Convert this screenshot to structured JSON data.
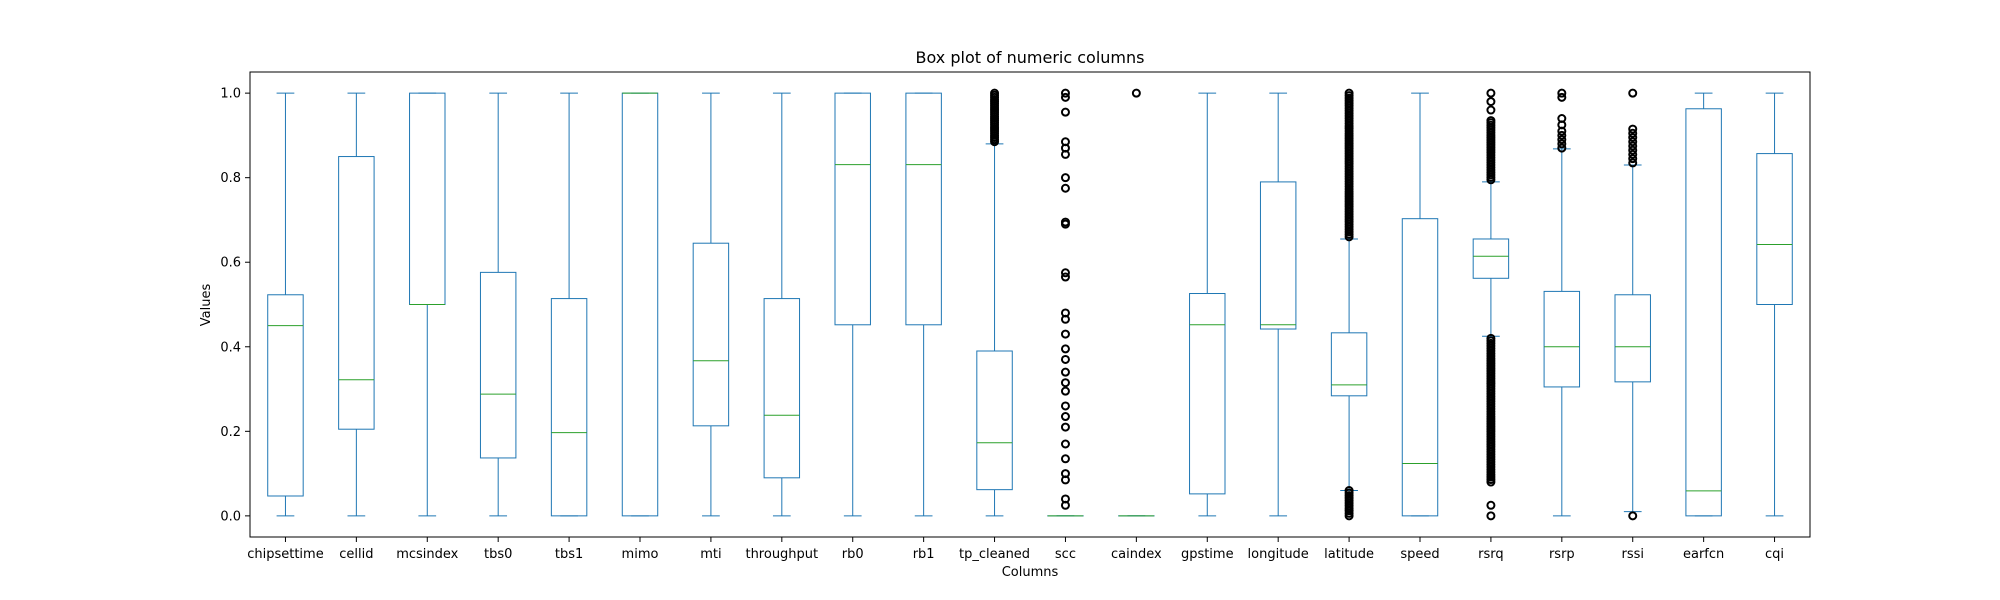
{
  "chart_data": {
    "type": "box",
    "title": "Box plot of numeric columns",
    "xlabel": "Columns",
    "ylabel": "Values",
    "ylim": [
      -0.05,
      1.05
    ],
    "yticks": [
      "0.0",
      "0.2",
      "0.4",
      "0.6",
      "0.8",
      "1.0"
    ],
    "grid": false,
    "colors": {
      "box": "#1f77b4",
      "median": "#2ca02c",
      "flier": "#000000",
      "axis": "#000000"
    },
    "categories": [
      "chipsettime",
      "cellid",
      "mcsindex",
      "tbs0",
      "tbs1",
      "mimo",
      "mti",
      "throughput",
      "rb0",
      "rb1",
      "tp_cleaned",
      "scc",
      "caindex",
      "gpstime",
      "longitude",
      "latitude",
      "speed",
      "rsrq",
      "rsrp",
      "rssi",
      "earfcn",
      "cqi"
    ],
    "series": [
      {
        "category": "chipsettime",
        "whisker_low": 0.0,
        "q1": 0.047,
        "median": 0.45,
        "q3": 0.523,
        "whisker_high": 1.0,
        "fliers": []
      },
      {
        "category": "cellid",
        "whisker_low": 0.0,
        "q1": 0.205,
        "median": 0.322,
        "q3": 0.85,
        "whisker_high": 1.0,
        "fliers": []
      },
      {
        "category": "mcsindex",
        "whisker_low": 0.0,
        "q1": 0.5,
        "median": 0.5,
        "q3": 1.0,
        "whisker_high": 1.0,
        "fliers": []
      },
      {
        "category": "tbs0",
        "whisker_low": 0.0,
        "q1": 0.137,
        "median": 0.288,
        "q3": 0.576,
        "whisker_high": 1.0,
        "fliers": []
      },
      {
        "category": "tbs1",
        "whisker_low": 0.0,
        "q1": 0.0,
        "median": 0.197,
        "q3": 0.514,
        "whisker_high": 1.0,
        "fliers": []
      },
      {
        "category": "mimo",
        "whisker_low": 0.0,
        "q1": 0.0,
        "median": 1.0,
        "q3": 1.0,
        "whisker_high": 1.0,
        "fliers": []
      },
      {
        "category": "mti",
        "whisker_low": 0.0,
        "q1": 0.213,
        "median": 0.367,
        "q3": 0.645,
        "whisker_high": 1.0,
        "fliers": []
      },
      {
        "category": "throughput",
        "whisker_low": 0.0,
        "q1": 0.09,
        "median": 0.238,
        "q3": 0.514,
        "whisker_high": 1.0,
        "fliers": []
      },
      {
        "category": "rb0",
        "whisker_low": 0.0,
        "q1": 0.452,
        "median": 0.831,
        "q3": 1.0,
        "whisker_high": 1.0,
        "fliers": []
      },
      {
        "category": "rb1",
        "whisker_low": 0.0,
        "q1": 0.452,
        "median": 0.831,
        "q3": 1.0,
        "whisker_high": 1.0,
        "fliers": []
      },
      {
        "category": "tp_cleaned",
        "whisker_low": 0.0,
        "q1": 0.062,
        "median": 0.173,
        "q3": 0.39,
        "whisker_high": 0.88,
        "fliers": [
          0.885,
          0.89,
          0.895,
          0.9,
          0.905,
          0.91,
          0.915,
          0.92,
          0.925,
          0.93,
          0.935,
          0.94,
          0.945,
          0.95,
          0.955,
          0.96,
          0.965,
          0.97,
          0.975,
          0.98,
          0.985,
          0.99,
          0.995,
          1.0
        ]
      },
      {
        "category": "scc",
        "whisker_low": 0.0,
        "q1": 0.0,
        "median": 0.0,
        "q3": 0.0,
        "whisker_high": 0.0,
        "fliers": [
          0.025,
          0.04,
          0.085,
          0.1,
          0.135,
          0.17,
          0.21,
          0.235,
          0.26,
          0.295,
          0.315,
          0.34,
          0.37,
          0.395,
          0.43,
          0.465,
          0.48,
          0.565,
          0.575,
          0.69,
          0.695,
          0.775,
          0.8,
          0.855,
          0.87,
          0.885,
          0.955,
          0.99,
          1.0
        ]
      },
      {
        "category": "caindex",
        "whisker_low": 0.0,
        "q1": 0.0,
        "median": 0.0,
        "q3": 0.0,
        "whisker_high": 0.0,
        "fliers": [
          1.0
        ]
      },
      {
        "category": "gpstime",
        "whisker_low": 0.0,
        "q1": 0.052,
        "median": 0.452,
        "q3": 0.526,
        "whisker_high": 1.0,
        "fliers": []
      },
      {
        "category": "longitude",
        "whisker_low": 0.0,
        "q1": 0.442,
        "median": 0.452,
        "q3": 0.79,
        "whisker_high": 1.0,
        "fliers": []
      },
      {
        "category": "latitude",
        "whisker_low": 0.06,
        "q1": 0.284,
        "median": 0.31,
        "q3": 0.433,
        "whisker_high": 0.655,
        "fliers_dense": [
          [
            0.0,
            0.06
          ],
          [
            0.66,
            1.0
          ]
        ]
      },
      {
        "category": "speed",
        "whisker_low": 0.0,
        "q1": 0.0,
        "median": 0.124,
        "q3": 0.703,
        "whisker_high": 1.0,
        "fliers": []
      },
      {
        "category": "rsrq",
        "whisker_low": 0.425,
        "q1": 0.562,
        "median": 0.614,
        "q3": 0.655,
        "whisker_high": 0.79,
        "fliers": [
          0.0,
          0.025,
          0.935,
          0.96,
          0.98,
          1.0
        ],
        "fliers_dense": [
          [
            0.08,
            0.42
          ],
          [
            0.795,
            0.93
          ]
        ]
      },
      {
        "category": "rsrp",
        "whisker_low": 0.0,
        "q1": 0.305,
        "median": 0.4,
        "q3": 0.531,
        "whisker_high": 0.868,
        "fliers": [
          0.87,
          0.88,
          0.89,
          0.9,
          0.91,
          0.925,
          0.94,
          0.99,
          1.0
        ]
      },
      {
        "category": "rssi",
        "whisker_low": 0.01,
        "q1": 0.317,
        "median": 0.4,
        "q3": 0.523,
        "whisker_high": 0.83,
        "fliers": [
          0.0,
          0.835,
          0.845,
          0.855,
          0.865,
          0.875,
          0.885,
          0.895,
          0.905,
          0.915,
          1.0
        ]
      },
      {
        "category": "earfcn",
        "whisker_low": 0.0,
        "q1": 0.0,
        "median": 0.059,
        "q3": 0.963,
        "whisker_high": 1.0,
        "fliers": []
      },
      {
        "category": "cqi",
        "whisker_low": 0.0,
        "q1": 0.5,
        "median": 0.642,
        "q3": 0.857,
        "whisker_high": 1.0,
        "fliers": []
      }
    ]
  }
}
